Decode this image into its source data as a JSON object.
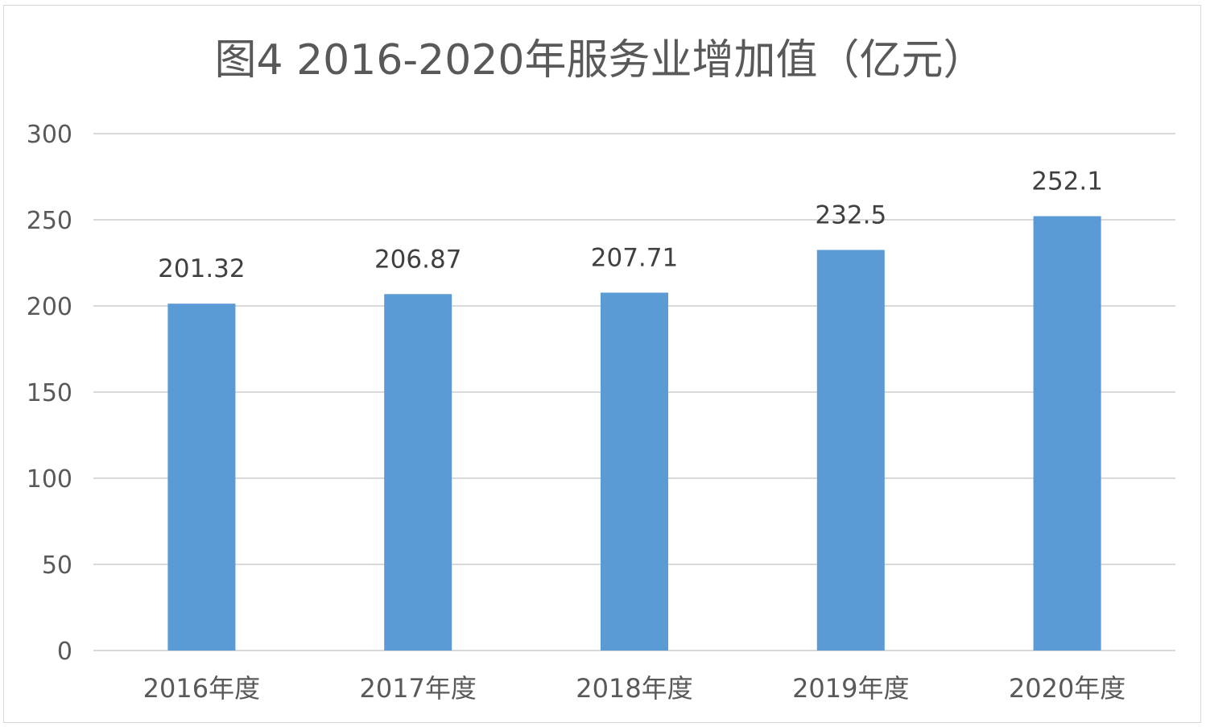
{
  "chart_data": {
    "type": "bar",
    "title": "图4  2016-2020年服务业增加值（亿元）",
    "categories": [
      "2016年度",
      "2017年度",
      "2018年度",
      "2019年度",
      "2020年度"
    ],
    "series": [
      {
        "values": [
          201.32,
          206.87,
          207.71,
          232.5,
          252.1
        ]
      }
    ],
    "data_labels": [
      "201.32",
      "206.87",
      "207.71",
      "232.5",
      "252.1"
    ],
    "ylim": [
      0,
      300
    ],
    "yticks": [
      "0",
      "50",
      "100",
      "150",
      "200",
      "250",
      "300"
    ],
    "xlabel": "",
    "ylabel": "",
    "grid": true,
    "legend": "none",
    "bar_color": "#5b9bd5",
    "grid_color": "#d9d9d9",
    "text_color": "#595959"
  }
}
